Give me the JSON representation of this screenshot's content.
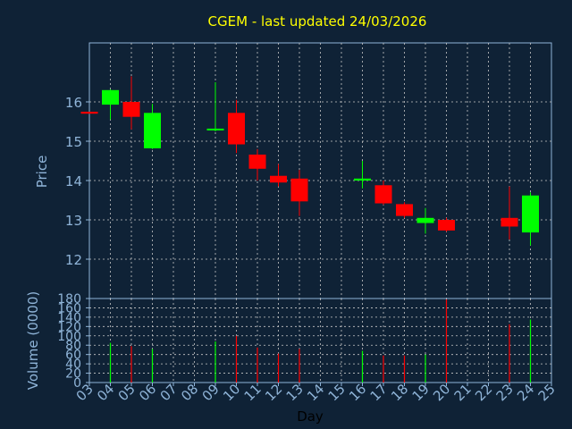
{
  "chart_data": [
    {
      "type": "candlestick",
      "title": "CGEM - last updated 24/03/2026",
      "ylabel": "Price",
      "ylim": [
        11,
        17.5
      ],
      "y_ticks": [
        "12",
        "13",
        "14",
        "15",
        "16"
      ],
      "x_ticks": [
        "03",
        "04",
        "05",
        "06",
        "07",
        "08",
        "09",
        "10",
        "11",
        "12",
        "13",
        "14",
        "15",
        "16",
        "17",
        "18",
        "19",
        "20",
        "21",
        "22",
        "23",
        "24",
        "25"
      ],
      "candles": [
        {
          "day": "03",
          "open": 15.75,
          "high": 15.75,
          "low": 15.7,
          "close": 15.7
        },
        {
          "day": "04",
          "open": 15.93,
          "high": 16.32,
          "low": 15.55,
          "close": 16.3
        },
        {
          "day": "05",
          "open": 16.0,
          "high": 16.65,
          "low": 15.3,
          "close": 15.62
        },
        {
          "day": "06",
          "open": 14.82,
          "high": 15.95,
          "low": 14.8,
          "close": 15.72
        },
        {
          "day": "09",
          "open": 15.28,
          "high": 16.5,
          "low": 15.25,
          "close": 15.32
        },
        {
          "day": "10",
          "open": 15.72,
          "high": 16.05,
          "low": 14.7,
          "close": 14.92
        },
        {
          "day": "11",
          "open": 14.66,
          "high": 14.8,
          "low": 14.0,
          "close": 14.3
        },
        {
          "day": "12",
          "open": 14.12,
          "high": 14.42,
          "low": 13.85,
          "close": 13.95
        },
        {
          "day": "13",
          "open": 14.05,
          "high": 14.27,
          "low": 13.1,
          "close": 13.47
        },
        {
          "day": "16",
          "open": 14.0,
          "high": 14.5,
          "low": 13.8,
          "close": 14.05
        },
        {
          "day": "17",
          "open": 13.88,
          "high": 14.0,
          "low": 13.38,
          "close": 13.42
        },
        {
          "day": "18",
          "open": 13.4,
          "high": 13.45,
          "low": 13.05,
          "close": 13.1
        },
        {
          "day": "19",
          "open": 12.92,
          "high": 13.3,
          "low": 12.65,
          "close": 13.05
        },
        {
          "day": "20",
          "open": 13.0,
          "high": 13.05,
          "low": 12.7,
          "close": 12.73
        },
        {
          "day": "23",
          "open": 13.05,
          "high": 13.85,
          "low": 12.5,
          "close": 12.83
        },
        {
          "day": "24",
          "open": 12.68,
          "high": 13.7,
          "low": 12.35,
          "close": 13.62
        }
      ],
      "colors": {
        "up": "#00ff00",
        "down": "#ff0000",
        "title": "#ffff00",
        "axis_text": "#8fb4d8"
      }
    },
    {
      "type": "bar",
      "ylabel": "Volume (0000)",
      "xlabel": "Day",
      "ylim": [
        0,
        180
      ],
      "y_ticks": [
        "0",
        "20",
        "40",
        "60",
        "80",
        "100",
        "120",
        "140",
        "160",
        "180"
      ],
      "bars": [
        {
          "day": "04",
          "value": 85,
          "direction": "up"
        },
        {
          "day": "05",
          "value": 78,
          "direction": "down"
        },
        {
          "day": "06",
          "value": 72,
          "direction": "up"
        },
        {
          "day": "09",
          "value": 88,
          "direction": "up"
        },
        {
          "day": "10",
          "value": 100,
          "direction": "down"
        },
        {
          "day": "11",
          "value": 75,
          "direction": "down"
        },
        {
          "day": "12",
          "value": 62,
          "direction": "down"
        },
        {
          "day": "13",
          "value": 72,
          "direction": "down"
        },
        {
          "day": "16",
          "value": 68,
          "direction": "up"
        },
        {
          "day": "17",
          "value": 58,
          "direction": "down"
        },
        {
          "day": "18",
          "value": 58,
          "direction": "down"
        },
        {
          "day": "19",
          "value": 60,
          "direction": "up"
        },
        {
          "day": "20",
          "value": 178,
          "direction": "down"
        },
        {
          "day": "23",
          "value": 125,
          "direction": "down"
        },
        {
          "day": "24",
          "value": 135,
          "direction": "up"
        }
      ]
    }
  ]
}
